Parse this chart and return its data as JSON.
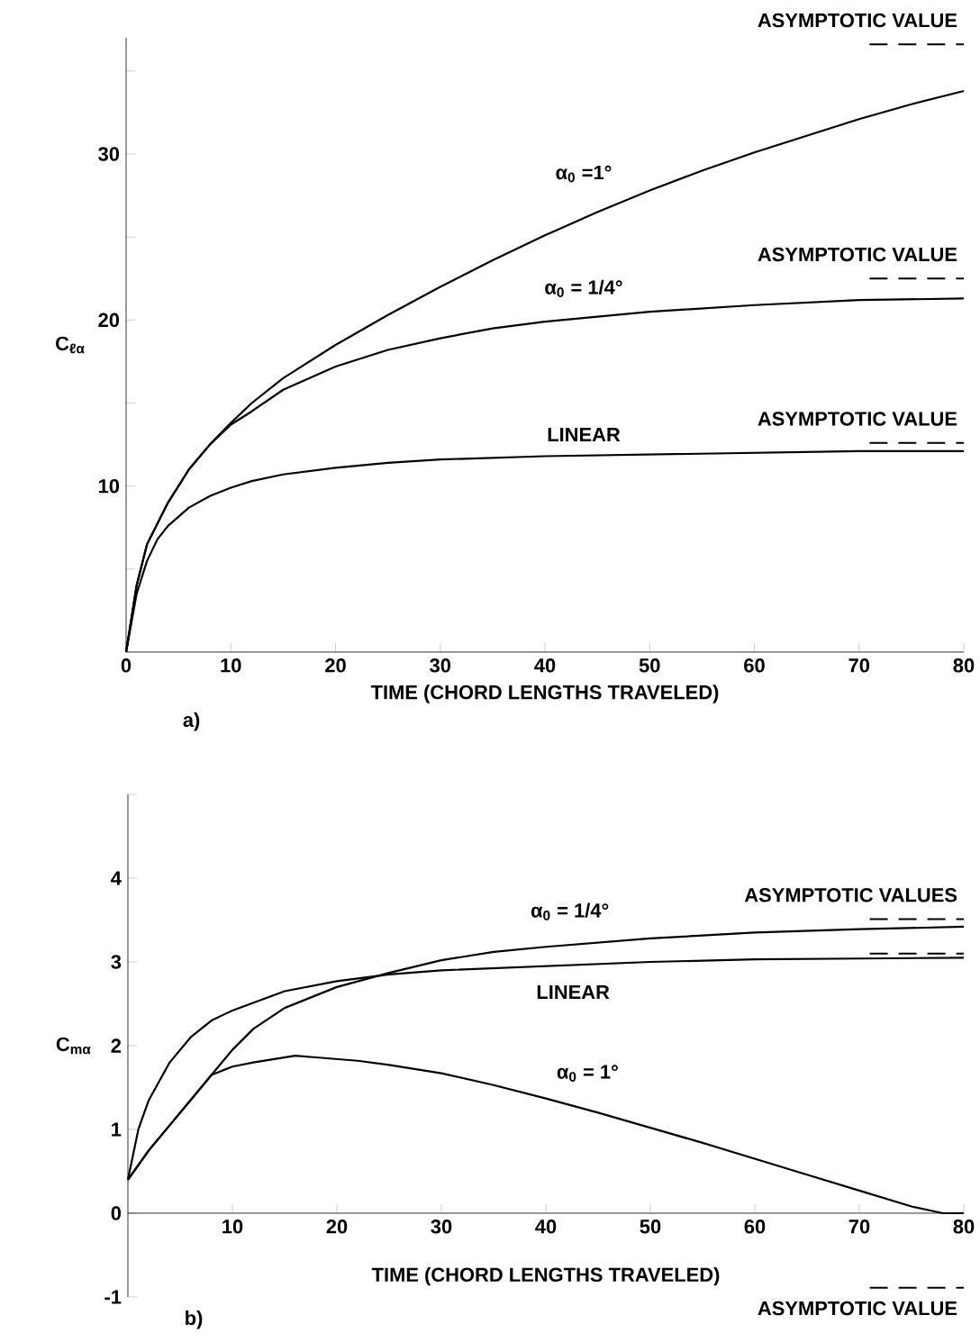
{
  "chart_data": [
    {
      "type": "line",
      "xlabel": "TIME (CHORD LENGTHS TRAVELED)",
      "ylabel": "C$_{ℓα}$",
      "xlim": [
        0,
        80
      ],
      "ylim": [
        0,
        37
      ],
      "xticks": [
        0,
        10,
        20,
        30,
        40,
        50,
        60,
        70,
        80
      ],
      "yticks": [
        {
          "value": 5,
          "label": null
        },
        10,
        {
          "value": 15,
          "label": null
        },
        20,
        {
          "value": 25,
          "label": null
        },
        30,
        {
          "value": 35,
          "label": null
        }
      ],
      "series": [
        {
          "name": "α$_{0}$ =1°",
          "color": "#000000",
          "x": [
            0,
            1,
            2,
            4,
            6,
            8,
            10,
            12,
            15,
            20,
            25,
            30,
            35,
            40,
            45,
            50,
            55,
            60,
            65,
            70,
            75,
            80
          ],
          "values": [
            0,
            4,
            6.5,
            9,
            11,
            12.5,
            13.8,
            15,
            16.5,
            18.5,
            20.3,
            22,
            23.6,
            25.1,
            26.5,
            27.8,
            29,
            30.1,
            31.1,
            32.1,
            33,
            33.8
          ]
        },
        {
          "name": "α$_{0}$ = 1/4°",
          "color": "#000000",
          "x": [
            0,
            1,
            2,
            4,
            6,
            8,
            10,
            12,
            15,
            20,
            25,
            30,
            35,
            40,
            50,
            60,
            70,
            80
          ],
          "values": [
            0,
            4,
            6.5,
            9,
            11,
            12.5,
            13.7,
            14.5,
            15.8,
            17.2,
            18.2,
            18.9,
            19.5,
            19.9,
            20.5,
            20.9,
            21.2,
            21.3
          ]
        },
        {
          "name": "LINEAR",
          "color": "#000000",
          "x": [
            0,
            1,
            2,
            3,
            4,
            6,
            8,
            10,
            12,
            15,
            20,
            25,
            30,
            40,
            50,
            60,
            70,
            80
          ],
          "values": [
            0,
            3.5,
            5.5,
            6.8,
            7.6,
            8.7,
            9.4,
            9.9,
            10.3,
            10.7,
            11.1,
            11.4,
            11.6,
            11.8,
            11.9,
            12.0,
            12.1,
            12.1
          ]
        }
      ],
      "ref_lines": [
        {
          "axis": "y",
          "value": 36.6,
          "label": "ASYMPTOTIC VALUE",
          "line_style": "dashed"
        },
        {
          "axis": "y",
          "value": 22.5,
          "label": "ASYMPTOTIC VALUE",
          "line_style": "dashed"
        },
        {
          "axis": "y",
          "value": 12.6,
          "label": "ASYMPTOTIC VALUE",
          "line_style": "dashed"
        }
      ],
      "annotations": [
        "a)"
      ]
    },
    {
      "type": "line",
      "xlabel": "TIME (CHORD LENGTHS TRAVELED)",
      "ylabel": "C$_{mα}$",
      "xlim": [
        0,
        80
      ],
      "ylim": [
        -1,
        5
      ],
      "xticks": [
        10,
        20,
        30,
        40,
        50,
        60,
        70,
        80
      ],
      "yticks": [
        -1,
        0,
        1,
        2,
        3,
        4,
        {
          "value": 5,
          "label": null
        }
      ],
      "series": [
        {
          "name": "α$_{0}$ = 1/4°",
          "color": "#000000",
          "x": [
            0,
            2,
            4,
            6,
            8,
            10,
            12,
            15,
            20,
            25,
            30,
            35,
            40,
            50,
            60,
            70,
            80
          ],
          "values": [
            0.4,
            0.75,
            1.05,
            1.35,
            1.65,
            1.95,
            2.2,
            2.45,
            2.7,
            2.87,
            3.02,
            3.12,
            3.18,
            3.28,
            3.35,
            3.39,
            3.42
          ]
        },
        {
          "name": "LINEAR",
          "color": "#000000",
          "x": [
            0,
            1,
            2,
            4,
            6,
            8,
            10,
            15,
            20,
            25,
            30,
            40,
            50,
            60,
            70,
            80
          ],
          "values": [
            0.4,
            1.0,
            1.35,
            1.8,
            2.1,
            2.3,
            2.42,
            2.65,
            2.77,
            2.85,
            2.9,
            2.95,
            3.0,
            3.03,
            3.04,
            3.05
          ]
        },
        {
          "name": "α$_{0}$ = 1°",
          "color": "#000000",
          "x": [
            0,
            2,
            4,
            6,
            8,
            10,
            12,
            14,
            16,
            18,
            20,
            22,
            25,
            30,
            35,
            40,
            45,
            50,
            55,
            60,
            65,
            70,
            75,
            78,
            80
          ],
          "values": [
            0.4,
            0.75,
            1.05,
            1.35,
            1.65,
            1.75,
            1.8,
            1.84,
            1.88,
            1.86,
            1.84,
            1.82,
            1.77,
            1.67,
            1.53,
            1.37,
            1.2,
            1.02,
            0.84,
            0.65,
            0.46,
            0.27,
            0.08,
            0,
            0
          ]
        }
      ],
      "ref_lines": [
        {
          "axis": "y",
          "value": 3.51,
          "label": "ASYMPTOTIC VALUES",
          "line_style": "dashed"
        },
        {
          "axis": "y",
          "value": 3.1,
          "label": null,
          "line_style": "dashed"
        },
        {
          "axis": "y",
          "value": -0.89,
          "label": "ASYMPTOTIC VALUE",
          "line_style": "dashed"
        }
      ],
      "annotations": [
        "b)"
      ]
    }
  ]
}
